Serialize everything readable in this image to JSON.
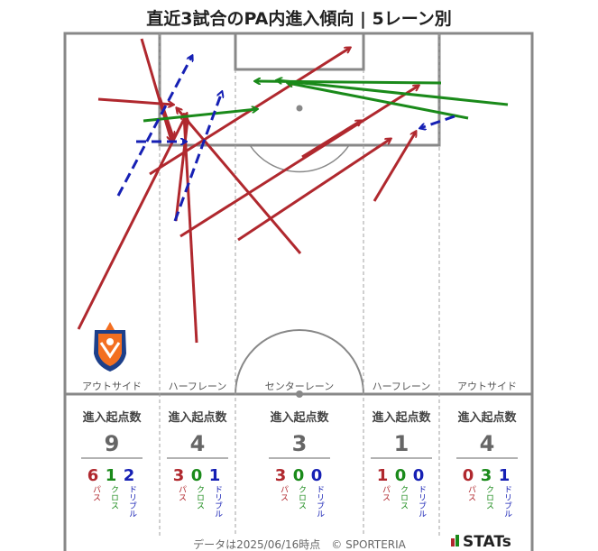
{
  "title": "直近3試合のPA内進入傾向 | 5レーン別",
  "footer": {
    "note": "データは2025/06/16時点　© SPORTERIA",
    "brand": "STATs"
  },
  "labels": {
    "start_count": "進入起点数",
    "pass": "パス",
    "cross": "クロス",
    "dribble": "ドリブル"
  },
  "colors": {
    "pass": "#b0282e",
    "cross": "#1a8a1a",
    "dribble": "#1620b4",
    "pitch_line": "#888888",
    "lane_divider": "#a0a0a0"
  },
  "chart_data": {
    "type": "table",
    "lanes": [
      {
        "name": "アウトサイド",
        "total": "9",
        "pass": "6",
        "cross": "1",
        "dribble": "2"
      },
      {
        "name": "ハーフレーン",
        "total": "4",
        "pass": "3",
        "cross": "0",
        "dribble": "1"
      },
      {
        "name": "センターレーン",
        "total": "3",
        "pass": "3",
        "cross": "0",
        "dribble": "0"
      },
      {
        "name": "ハーフレーン",
        "total": "1",
        "pass": "1",
        "cross": "0",
        "dribble": "0"
      },
      {
        "name": "アウトサイド",
        "total": "4",
        "pass": "0",
        "cross": "3",
        "dribble": "1"
      }
    ]
  }
}
